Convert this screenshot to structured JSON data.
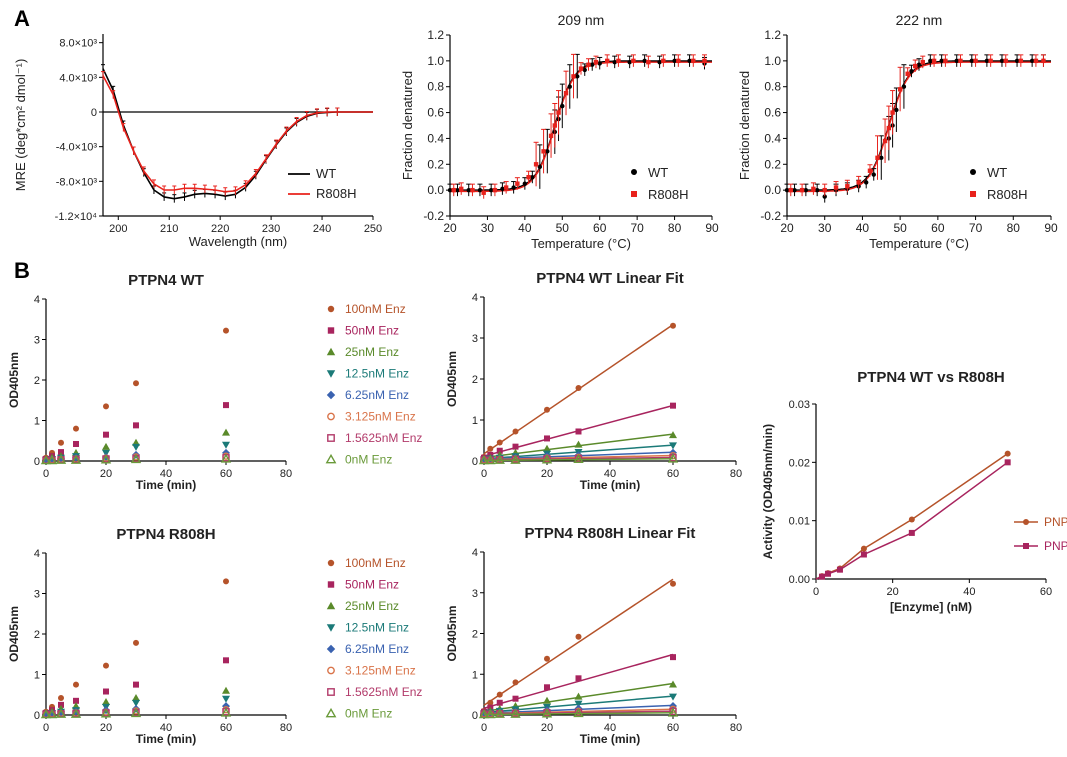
{
  "panel_labels": [
    "A",
    "B"
  ],
  "colors": {
    "wt": "#000000",
    "r808h": "#e8221c",
    "enz": [
      "#b5532a",
      "#a8245e",
      "#5a8a2a",
      "#1b7a78",
      "#3a62b0",
      "#d9744a",
      "#b23a6a",
      "#6a9a3a"
    ],
    "pnp_wt": "#b5532a",
    "pnp_r808h": "#a8245e"
  },
  "chart_data": [
    {
      "id": "cd-spectrum",
      "type": "line",
      "title": "",
      "xlabel": "Wavelength (nm)",
      "ylabel": "MRE (deg*cm² dmol⁻¹)",
      "xlim": [
        197,
        250
      ],
      "ylim": [
        -12000,
        9000
      ],
      "xticks": [
        200,
        210,
        220,
        230,
        240,
        250
      ],
      "yticks": [
        8000,
        4000,
        0,
        -4000,
        -8000,
        -12000
      ],
      "yticklabels": [
        "8.0×10³",
        "4.0×10³",
        "0",
        "-4.0×10³",
        "-8.0×10³",
        "-1.2×10⁴"
      ],
      "legend": "right",
      "series": [
        {
          "name": "WT",
          "color": "#000000",
          "x": [
            197,
            199,
            201,
            203,
            205,
            207,
            209,
            211,
            213,
            215,
            217,
            219,
            221,
            223,
            225,
            227,
            229,
            231,
            233,
            235,
            237,
            239,
            241,
            243,
            245,
            247,
            250
          ],
          "y": [
            5000,
            2500,
            -1500,
            -4500,
            -7000,
            -9000,
            -9800,
            -10000,
            -9800,
            -9500,
            -9400,
            -9500,
            -9700,
            -9500,
            -8700,
            -7300,
            -5500,
            -3800,
            -2300,
            -1200,
            -500,
            -150,
            -50,
            0,
            0,
            0,
            0
          ]
        },
        {
          "name": "R808H",
          "color": "#e8221c",
          "x": [
            197,
            199,
            201,
            203,
            205,
            207,
            209,
            211,
            213,
            215,
            217,
            219,
            221,
            223,
            225,
            227,
            229,
            231,
            233,
            235,
            237,
            239,
            241,
            243,
            245,
            247,
            250
          ],
          "y": [
            4200,
            2000,
            -1800,
            -4500,
            -6800,
            -8300,
            -9000,
            -9000,
            -8800,
            -8800,
            -8900,
            -9000,
            -9200,
            -9100,
            -8400,
            -7100,
            -5400,
            -3700,
            -2200,
            -1100,
            -400,
            -100,
            0,
            0,
            0,
            0,
            0
          ]
        }
      ]
    },
    {
      "id": "melt-209",
      "type": "scatter",
      "title": "209 nm",
      "xlabel": "Temperature (°C)",
      "ylabel": "Fraction denatured",
      "xlim": [
        20,
        90
      ],
      "ylim": [
        -0.2,
        1.2
      ],
      "xticks": [
        20,
        30,
        40,
        50,
        60,
        70,
        80,
        90
      ],
      "yticks": [
        -0.2,
        0.0,
        0.2,
        0.4,
        0.6,
        0.8,
        1.0,
        1.2
      ],
      "yticklabels": [
        "-0.2",
        "0.0",
        "0.2",
        "0.4",
        "0.6",
        "0.8",
        "1.0",
        "1.2"
      ],
      "legend": "bottom-right",
      "midpoint": 48,
      "series": [
        {
          "name": "WT",
          "color": "#000000",
          "x": [
            20,
            22,
            25,
            28,
            31,
            34,
            37,
            40,
            42,
            44,
            46,
            48,
            49,
            50,
            52,
            54,
            56,
            58,
            60,
            64,
            68,
            72,
            76,
            80,
            84,
            88
          ],
          "y": [
            0.0,
            0.0,
            0.0,
            0.0,
            0.0,
            0.01,
            0.02,
            0.05,
            0.1,
            0.18,
            0.3,
            0.45,
            0.55,
            0.65,
            0.8,
            0.88,
            0.93,
            0.97,
            0.98,
            0.99,
            0.99,
            1.0,
            0.99,
            1.0,
            1.0,
            0.98
          ]
        },
        {
          "name": "R808H",
          "color": "#e8221c",
          "x": [
            21,
            23,
            26,
            29,
            32,
            35,
            38,
            41,
            43,
            45,
            47,
            48,
            49,
            51,
            53,
            55,
            57,
            59,
            62,
            65,
            69,
            73,
            77,
            81,
            85,
            88
          ],
          "y": [
            0.0,
            0.01,
            0.0,
            -0.02,
            0.0,
            0.02,
            0.05,
            0.1,
            0.2,
            0.3,
            0.42,
            0.5,
            0.6,
            0.75,
            0.88,
            0.94,
            0.97,
            0.99,
            1.0,
            1.0,
            1.0,
            0.99,
            1.0,
            1.0,
            1.0,
            1.0
          ]
        }
      ]
    },
    {
      "id": "melt-222",
      "type": "scatter",
      "title": "222 nm",
      "xlabel": "Temperature (°C)",
      "ylabel": "Fraction denatured",
      "xlim": [
        20,
        90
      ],
      "ylim": [
        -0.2,
        1.2
      ],
      "xticks": [
        20,
        30,
        40,
        50,
        60,
        70,
        80,
        90
      ],
      "yticks": [
        -0.2,
        0.0,
        0.2,
        0.4,
        0.6,
        0.8,
        1.0,
        1.2
      ],
      "yticklabels": [
        "-0.2",
        "0.0",
        "0.2",
        "0.4",
        "0.6",
        "0.8",
        "1.0",
        "1.2"
      ],
      "legend": "bottom-right",
      "midpoint": 47,
      "series": [
        {
          "name": "WT",
          "color": "#000000",
          "x": [
            20,
            22,
            25,
            28,
            30,
            33,
            36,
            39,
            41,
            43,
            45,
            47,
            48,
            49,
            51,
            53,
            55,
            58,
            61,
            65,
            69,
            73,
            77,
            81,
            85,
            88
          ],
          "y": [
            0.0,
            0.0,
            0.0,
            0.0,
            -0.05,
            0.0,
            0.01,
            0.03,
            0.06,
            0.12,
            0.25,
            0.4,
            0.5,
            0.62,
            0.8,
            0.92,
            0.97,
            1.0,
            1.0,
            1.0,
            1.0,
            1.0,
            1.0,
            1.0,
            1.0,
            1.0
          ]
        },
        {
          "name": "R808H",
          "color": "#e8221c",
          "x": [
            21,
            24,
            27,
            30,
            33,
            36,
            39,
            42,
            44,
            46,
            47,
            48,
            50,
            52,
            54,
            56,
            59,
            62,
            66,
            70,
            74,
            78,
            82,
            86,
            88
          ],
          "y": [
            0.0,
            0.0,
            0.01,
            0.0,
            0.02,
            0.03,
            0.06,
            0.15,
            0.25,
            0.38,
            0.48,
            0.6,
            0.78,
            0.9,
            0.96,
            0.99,
            1.0,
            1.0,
            1.0,
            1.0,
            1.0,
            1.0,
            1.0,
            1.0,
            1.0
          ]
        }
      ]
    },
    {
      "id": "wt-scatter",
      "type": "scatter",
      "title": "PTPN4 WT",
      "xlabel": "Time (min)",
      "ylabel": "OD405nm",
      "xlim": [
        0,
        80
      ],
      "ylim": [
        0,
        4
      ],
      "xticks": [
        0,
        20,
        40,
        60,
        80
      ],
      "yticks": [
        0,
        1,
        2,
        3,
        4
      ],
      "legend": "right",
      "x": [
        0,
        2,
        5,
        10,
        20,
        30,
        60
      ],
      "series": [
        {
          "name": "100nM Enz",
          "y": [
            0.08,
            0.2,
            0.45,
            0.8,
            1.35,
            1.92,
            3.22
          ]
        },
        {
          "name": "50nM Enz",
          "y": [
            0.05,
            0.12,
            0.22,
            0.42,
            0.65,
            0.88,
            1.38
          ]
        },
        {
          "name": "25nM Enz",
          "y": [
            0.03,
            0.08,
            0.12,
            0.2,
            0.35,
            0.45,
            0.7
          ]
        },
        {
          "name": "12.5nM Enz",
          "y": [
            0.03,
            0.05,
            0.08,
            0.12,
            0.2,
            0.35,
            0.4
          ]
        },
        {
          "name": "6.25nM Enz",
          "y": [
            0.02,
            0.04,
            0.05,
            0.08,
            0.1,
            0.15,
            0.2
          ]
        },
        {
          "name": "3.125nM Enz",
          "y": [
            0.02,
            0.03,
            0.04,
            0.05,
            0.07,
            0.1,
            0.12
          ]
        },
        {
          "name": "1.5625nM Enz",
          "y": [
            0.02,
            0.02,
            0.03,
            0.04,
            0.05,
            0.06,
            0.08
          ]
        },
        {
          "name": "0nM Enz",
          "y": [
            0.01,
            0.01,
            0.02,
            0.02,
            0.03,
            0.04,
            0.05
          ]
        }
      ]
    },
    {
      "id": "wt-fit",
      "type": "line",
      "title": "PTPN4 WT Linear Fit",
      "xlabel": "Time (min)",
      "ylabel": "OD405nm",
      "xlim": [
        0,
        80
      ],
      "ylim": [
        0,
        4
      ],
      "xticks": [
        0,
        20,
        40,
        60,
        80
      ],
      "yticks": [
        0,
        1,
        2,
        3,
        4
      ],
      "x": [
        0,
        2,
        5,
        10,
        20,
        30,
        60
      ],
      "series": [
        {
          "name": "100nM Enz",
          "y": [
            0.1,
            0.3,
            0.45,
            0.72,
            1.25,
            1.78,
            3.3
          ]
        },
        {
          "name": "50nM Enz",
          "y": [
            0.08,
            0.15,
            0.25,
            0.35,
            0.55,
            0.72,
            1.35
          ]
        },
        {
          "name": "25nM Enz",
          "y": [
            0.05,
            0.08,
            0.15,
            0.2,
            0.3,
            0.4,
            0.63
          ]
        },
        {
          "name": "12.5nM Enz",
          "y": [
            0.04,
            0.06,
            0.08,
            0.12,
            0.18,
            0.22,
            0.38
          ]
        },
        {
          "name": "6.25nM Enz",
          "y": [
            0.03,
            0.04,
            0.06,
            0.08,
            0.12,
            0.14,
            0.2
          ]
        },
        {
          "name": "3.125nM Enz",
          "y": [
            0.03,
            0.03,
            0.04,
            0.05,
            0.07,
            0.09,
            0.13
          ]
        },
        {
          "name": "1.5625nM Enz",
          "y": [
            0.02,
            0.02,
            0.03,
            0.04,
            0.05,
            0.06,
            0.08
          ]
        },
        {
          "name": "0nM Enz",
          "y": [
            0.01,
            0.01,
            0.02,
            0.02,
            0.03,
            0.04,
            0.05
          ]
        }
      ]
    },
    {
      "id": "r808h-scatter",
      "type": "scatter",
      "title": "PTPN4 R808H",
      "xlabel": "Time (min)",
      "ylabel": "OD405nm",
      "xlim": [
        0,
        80
      ],
      "ylim": [
        0,
        4
      ],
      "xticks": [
        0,
        20,
        40,
        60,
        80
      ],
      "yticks": [
        0,
        1,
        2,
        3,
        4
      ],
      "legend": "right",
      "x": [
        0,
        2,
        5,
        10,
        20,
        30,
        60
      ],
      "series": [
        {
          "name": "100nM Enz",
          "y": [
            0.08,
            0.2,
            0.42,
            0.75,
            1.22,
            1.78,
            3.3
          ]
        },
        {
          "name": "50nM Enz",
          "y": [
            0.05,
            0.12,
            0.25,
            0.35,
            0.58,
            0.75,
            1.35
          ]
        },
        {
          "name": "25nM Enz",
          "y": [
            0.03,
            0.08,
            0.15,
            0.22,
            0.32,
            0.42,
            0.6
          ]
        },
        {
          "name": "12.5nM Enz",
          "y": [
            0.03,
            0.05,
            0.08,
            0.12,
            0.2,
            0.3,
            0.4
          ]
        },
        {
          "name": "6.25nM Enz",
          "y": [
            0.02,
            0.04,
            0.05,
            0.08,
            0.12,
            0.15,
            0.22
          ]
        },
        {
          "name": "3.125nM Enz",
          "y": [
            0.02,
            0.03,
            0.04,
            0.05,
            0.07,
            0.1,
            0.13
          ]
        },
        {
          "name": "1.5625nM Enz",
          "y": [
            0.02,
            0.02,
            0.03,
            0.04,
            0.05,
            0.06,
            0.08
          ]
        },
        {
          "name": "0nM Enz",
          "y": [
            0.01,
            0.01,
            0.02,
            0.02,
            0.03,
            0.04,
            0.05
          ]
        }
      ]
    },
    {
      "id": "r808h-fit",
      "type": "line",
      "title": "PTPN4 R808H Linear Fit",
      "xlabel": "Time (min)",
      "ylabel": "OD405nm",
      "xlim": [
        0,
        80
      ],
      "ylim": [
        0,
        4
      ],
      "xticks": [
        0,
        20,
        40,
        60,
        80
      ],
      "yticks": [
        0,
        1,
        2,
        3,
        4
      ],
      "x": [
        0,
        2,
        5,
        10,
        20,
        30,
        60
      ],
      "series": [
        {
          "name": "100nM Enz",
          "y": [
            0.1,
            0.3,
            0.5,
            0.8,
            1.38,
            1.92,
            3.22
          ]
        },
        {
          "name": "50nM Enz",
          "y": [
            0.08,
            0.18,
            0.3,
            0.4,
            0.68,
            0.9,
            1.42
          ]
        },
        {
          "name": "25nM Enz",
          "y": [
            0.05,
            0.1,
            0.15,
            0.22,
            0.35,
            0.45,
            0.75
          ]
        },
        {
          "name": "12.5nM Enz",
          "y": [
            0.04,
            0.06,
            0.1,
            0.14,
            0.2,
            0.28,
            0.45
          ]
        },
        {
          "name": "6.25nM Enz",
          "y": [
            0.03,
            0.04,
            0.06,
            0.08,
            0.12,
            0.16,
            0.22
          ]
        },
        {
          "name": "3.125nM Enz",
          "y": [
            0.03,
            0.03,
            0.04,
            0.05,
            0.07,
            0.09,
            0.14
          ]
        },
        {
          "name": "1.5625nM Enz",
          "y": [
            0.02,
            0.02,
            0.03,
            0.04,
            0.05,
            0.06,
            0.09
          ]
        },
        {
          "name": "0nM Enz",
          "y": [
            0.01,
            0.01,
            0.02,
            0.02,
            0.03,
            0.04,
            0.05
          ]
        }
      ]
    },
    {
      "id": "wt-vs-r808h",
      "type": "line",
      "title": "PTPN4 WT vs R808H",
      "xlabel": "[Enzyme] (nM)",
      "ylabel": "Activity (OD405nm/min)",
      "xlim": [
        0,
        60
      ],
      "ylim": [
        0,
        0.03
      ],
      "xticks": [
        0,
        20,
        40,
        60
      ],
      "yticks": [
        0,
        0.01,
        0.02,
        0.03
      ],
      "yticklabels": [
        "0.00",
        "0.01",
        "0.02",
        "0.03"
      ],
      "legend": "right",
      "x": [
        1.5625,
        3.125,
        6.25,
        12.5,
        25,
        50
      ],
      "series": [
        {
          "name": "PNP",
          "color": "#b5532a",
          "marker": "circle",
          "y": [
            0.0005,
            0.001,
            0.0018,
            0.0052,
            0.0102,
            0.0215
          ]
        },
        {
          "name": "PNP",
          "color": "#a8245e",
          "marker": "square",
          "y": [
            0.0004,
            0.0009,
            0.0016,
            0.0042,
            0.0079,
            0.02
          ]
        }
      ]
    }
  ]
}
